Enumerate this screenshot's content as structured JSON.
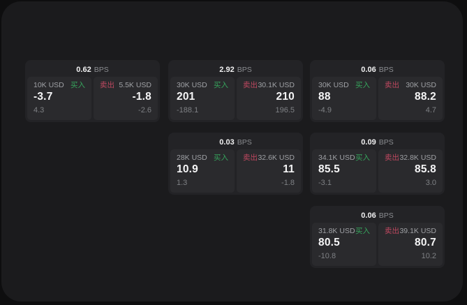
{
  "ui_colors": {
    "page_background": "#0e0e0f",
    "panel_background": "#1b1b1d",
    "card_background": "#232326",
    "pane_background": "#2a2a2d",
    "buy_color": "#36a35c",
    "sell_color": "#bf4860",
    "value_color": "#f5f5f6",
    "muted_color": "#9fa1a5"
  },
  "bps_unit": "BPS",
  "buy_label": "买入",
  "sell_label": "卖出",
  "cards": [
    {
      "bps": "0.62",
      "unit": "BPS",
      "buy": {
        "amount": "10K USD",
        "side": "买入",
        "value": "-3.7",
        "sub": "4.3"
      },
      "sell": {
        "side": "卖出",
        "amount": "5.5K USD",
        "value": "-1.8",
        "sub": "-2.6"
      }
    },
    {
      "bps": "2.92",
      "unit": "BPS",
      "buy": {
        "amount": "30K USD",
        "side": "买入",
        "value": "201",
        "sub": "-188.1"
      },
      "sell": {
        "side": "卖出",
        "amount": "30.1K USD",
        "value": "210",
        "sub": "196.5"
      }
    },
    {
      "bps": "0.06",
      "unit": "BPS",
      "buy": {
        "amount": "30K USD",
        "side": "买入",
        "value": "88",
        "sub": "-4.9"
      },
      "sell": {
        "side": "卖出",
        "amount": "30K USD",
        "value": "88.2",
        "sub": "4.7"
      }
    },
    {
      "bps": "0.03",
      "unit": "BPS",
      "buy": {
        "amount": "28K USD",
        "side": "买入",
        "value": "10.9",
        "sub": "1.3"
      },
      "sell": {
        "side": "卖出",
        "amount": "32.6K USD",
        "value": "11",
        "sub": "-1.8"
      }
    },
    {
      "bps": "0.09",
      "unit": "BPS",
      "buy": {
        "amount": "34.1K USD",
        "side": "买入",
        "value": "85.5",
        "sub": "-3.1"
      },
      "sell": {
        "side": "卖出",
        "amount": "32.8K USD",
        "value": "85.8",
        "sub": "3.0"
      }
    },
    {
      "bps": "0.06",
      "unit": "BPS",
      "buy": {
        "amount": "31.8K USD",
        "side": "买入",
        "value": "80.5",
        "sub": "-10.8"
      },
      "sell": {
        "side": "卖出",
        "amount": "39.1K USD",
        "value": "80.7",
        "sub": "10.2"
      }
    }
  ]
}
